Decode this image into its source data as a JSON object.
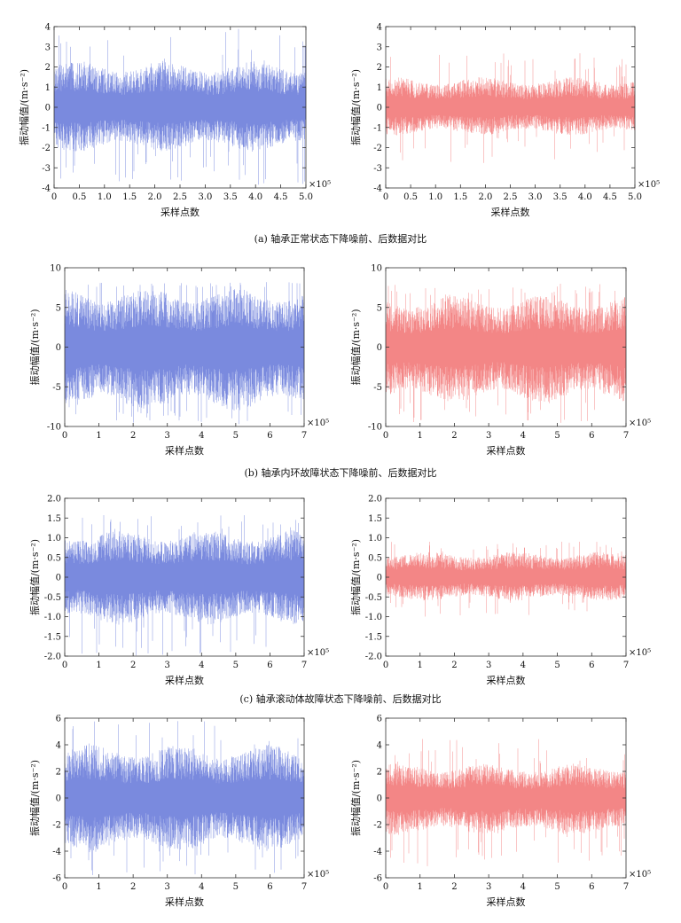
{
  "figure": {
    "captions": [
      "(a) 轴承正常状态下降噪前、后数据对比",
      "(b) 轴承内环故障状态下降噪前、后数据对比",
      "(c) 轴承滚动体故障状态下降噪前、后数据对比"
    ],
    "multiplier_label": "×10⁵"
  },
  "colors": {
    "before": "#5b6fd6",
    "after": "#f06a6a",
    "axis": "#333333"
  },
  "chart_data": [
    {
      "type": "line",
      "panel": "a-before",
      "variant": "before",
      "title": "",
      "xlabel": "采样点数",
      "ylabel": "振动幅值/(m·s⁻²)",
      "xlim": [
        0,
        5.0
      ],
      "ylim": [
        -4,
        4
      ],
      "xticks": [
        "0",
        "0.5",
        "1.0",
        "1.5",
        "2.0",
        "2.5",
        "3.0",
        "3.5",
        "4.0",
        "4.5",
        "5.0"
      ],
      "yticks": [
        "-4",
        "-3",
        "-2",
        "-1",
        "0",
        "1",
        "2",
        "3",
        "4"
      ],
      "envelope": {
        "typical": [
          -2.2,
          2.3
        ],
        "peak": [
          -3.9,
          3.9
        ]
      },
      "series": [
        {
          "points": 500000
        }
      ]
    },
    {
      "type": "line",
      "panel": "a-after",
      "variant": "after",
      "title": "",
      "xlabel": "采样点数",
      "ylabel": "振动幅值/(m·s⁻²)",
      "xlim": [
        0,
        5.0
      ],
      "ylim": [
        -4,
        4
      ],
      "xticks": [
        "0",
        "0.5",
        "1.0",
        "1.5",
        "2.0",
        "2.5",
        "3.0",
        "3.5",
        "4.0",
        "4.5",
        "5.0"
      ],
      "yticks": [
        "-4",
        "-3",
        "-2",
        "-1",
        "0",
        "1",
        "2",
        "3",
        "4"
      ],
      "envelope": {
        "typical": [
          -1.4,
          1.5
        ],
        "peak": [
          -2.9,
          2.7
        ]
      },
      "series": [
        {
          "points": 500000
        }
      ]
    },
    {
      "type": "line",
      "panel": "b-before",
      "variant": "before",
      "title": "",
      "xlabel": "采样点数",
      "ylabel": "振动幅值/(m·s⁻²)",
      "xlim": [
        0,
        7
      ],
      "ylim": [
        -10,
        10
      ],
      "xticks": [
        "0",
        "1",
        "2",
        "3",
        "4",
        "5",
        "6",
        "7"
      ],
      "yticks": [
        "-10",
        "-5",
        "0",
        "5",
        "10"
      ],
      "envelope": {
        "typical": [
          -8.0,
          7.5
        ],
        "peak": [
          -9.8,
          8.2
        ]
      },
      "series": [
        {
          "points": 700000
        }
      ]
    },
    {
      "type": "line",
      "panel": "b-after",
      "variant": "after",
      "title": "",
      "xlabel": "采样点数",
      "ylabel": "振动幅值/(m·s⁻²)",
      "xlim": [
        0,
        7
      ],
      "ylim": [
        -10,
        10
      ],
      "xticks": [
        "0",
        "1",
        "2",
        "3",
        "4",
        "5",
        "6",
        "7"
      ],
      "yticks": [
        "-10",
        "-5",
        "0",
        "5",
        "10"
      ],
      "envelope": {
        "typical": [
          -7.0,
          6.5
        ],
        "peak": [
          -9.6,
          8.0
        ]
      },
      "series": [
        {
          "points": 700000
        }
      ]
    },
    {
      "type": "line",
      "panel": "c-before",
      "variant": "before",
      "title": "",
      "xlabel": "采样点数",
      "ylabel": "振动幅值/(m·s⁻²)",
      "xlim": [
        0,
        7
      ],
      "ylim": [
        -2.0,
        2.0
      ],
      "xticks": [
        "0",
        "1",
        "2",
        "3",
        "4",
        "5",
        "6",
        "7"
      ],
      "yticks": [
        "-2.0",
        "-1.5",
        "-1.0",
        "-0.5",
        "0",
        "0.5",
        "1.0",
        "1.5",
        "2.0"
      ],
      "envelope": {
        "typical": [
          -1.2,
          1.2
        ],
        "peak": [
          -2.0,
          1.6
        ]
      },
      "series": [
        {
          "points": 700000
        }
      ]
    },
    {
      "type": "line",
      "panel": "c-after",
      "variant": "after",
      "title": "",
      "xlabel": "采样点数",
      "ylabel": "振动幅值/(m·s⁻²)",
      "xlim": [
        0,
        7
      ],
      "ylim": [
        -2.0,
        2.0
      ],
      "xticks": [
        "0",
        "1",
        "2",
        "3",
        "4",
        "5",
        "6",
        "7"
      ],
      "yticks": [
        "-2.0",
        "-1.5",
        "-1.0",
        "-0.5",
        "0",
        "0.5",
        "1.0",
        "1.5",
        "2.0"
      ],
      "envelope": {
        "typical": [
          -0.6,
          0.65
        ],
        "peak": [
          -1.0,
          0.9
        ]
      },
      "series": [
        {
          "points": 700000
        }
      ]
    },
    {
      "type": "line",
      "panel": "d-before",
      "variant": "before",
      "title": "",
      "xlabel": "采样点数",
      "ylabel": "振动幅值/(m·s⁻²)",
      "xlim": [
        0,
        7
      ],
      "ylim": [
        -6,
        6
      ],
      "xticks": [
        "0",
        "1",
        "2",
        "3",
        "4",
        "5",
        "6",
        "7"
      ],
      "yticks": [
        "-6",
        "-4",
        "-2",
        "0",
        "2",
        "4",
        "6"
      ],
      "envelope": {
        "typical": [
          -4.0,
          4.0
        ],
        "peak": [
          -5.9,
          5.8
        ]
      },
      "series": [
        {
          "points": 700000
        }
      ]
    },
    {
      "type": "line",
      "panel": "d-after",
      "variant": "after",
      "title": "",
      "xlabel": "采样点数",
      "ylabel": "振动幅值/(m·s⁻²)",
      "xlim": [
        0,
        7
      ],
      "ylim": [
        -6,
        6
      ],
      "xticks": [
        "0",
        "1",
        "2",
        "3",
        "4",
        "5",
        "6",
        "7"
      ],
      "yticks": [
        "-6",
        "-4",
        "-2",
        "0",
        "2",
        "4",
        "6"
      ],
      "envelope": {
        "typical": [
          -2.8,
          2.6
        ],
        "peak": [
          -5.2,
          4.5
        ]
      },
      "series": [
        {
          "points": 700000
        }
      ]
    }
  ]
}
